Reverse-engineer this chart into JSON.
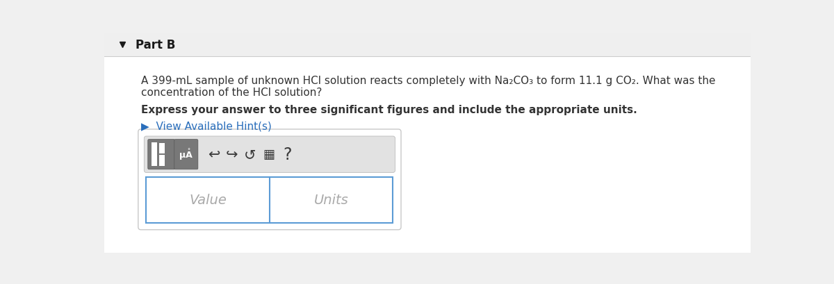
{
  "background_color": "#f0f0f0",
  "header_bg": "#efefef",
  "header_text": "Part B",
  "header_text_color": "#1a1a1a",
  "header_font_size": 12,
  "body_bg": "#ffffff",
  "question_line1": "A 399‑mL sample of unknown HCl solution reacts completely with Na₂CO₃ to form 11.1 g CO₂. What was the",
  "question_line2": "concentration of the HCl solution?",
  "question_font_size": 11,
  "bold_line": "Express your answer to three significant figures and include the appropriate units.",
  "bold_font_size": 11,
  "hint_text": "▶  View Available Hint(s)",
  "hint_color": "#2a6ebb",
  "hint_font_size": 11,
  "value_label": "Value",
  "units_label": "Units",
  "input_font_size": 14,
  "text_color": "#333333",
  "border_color": "#c8c8c8",
  "input_border_color": "#5b9bd5",
  "toolbar_bg": "#e2e2e2",
  "btn_bg": "#787878",
  "btn_edge": "#555555"
}
